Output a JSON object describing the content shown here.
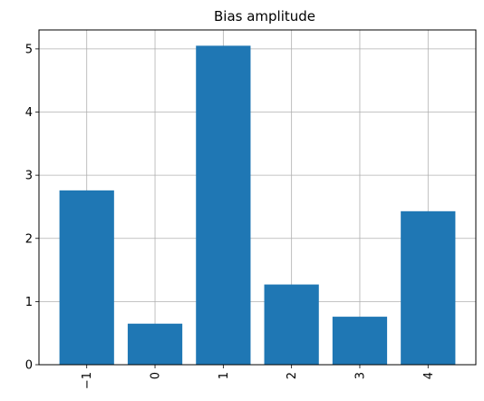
{
  "chart_data": {
    "type": "bar",
    "title": "Bias amplitude",
    "xlabel": "",
    "ylabel": "",
    "categories": [
      "−1",
      "0",
      "1",
      "2",
      "3",
      "4"
    ],
    "values": [
      2.76,
      0.65,
      5.05,
      1.27,
      0.76,
      2.43
    ],
    "ylim": [
      0,
      5.3
    ],
    "yticks": [
      0,
      1,
      2,
      3,
      4,
      5
    ],
    "grid": true,
    "bar_color": "#1f77b4",
    "grid_color": "#b0b0b0",
    "xtick_rotation": "vertical"
  }
}
